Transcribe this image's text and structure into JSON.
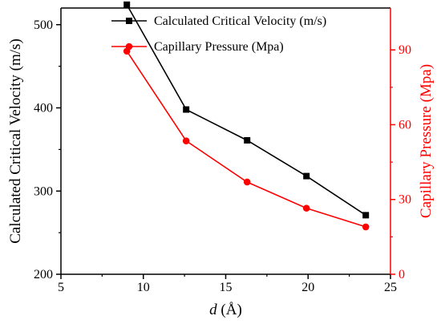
{
  "chart_data": {
    "type": "line",
    "x": [
      9.0,
      12.6,
      16.3,
      19.9,
      23.5
    ],
    "xlabel_italic": "d",
    "xlabel_unit": " (Å)",
    "xlim": [
      5,
      25
    ],
    "xticks": [
      5,
      10,
      15,
      20,
      25
    ],
    "ylabel_left": "Calculated Critical Velocity (m/s)",
    "ylim_left": [
      200,
      520
    ],
    "yticks_left": [
      200,
      300,
      400,
      500
    ],
    "ylabel_right": "Capillary Pressure (Mpa)",
    "ylim_right": [
      0,
      106.8
    ],
    "yticks_right": [
      0,
      30,
      60,
      90
    ],
    "series": [
      {
        "name": "Calculated Critical Velocity (m/s)",
        "axis": "left",
        "marker": "square",
        "color": "#000000",
        "values": [
          524,
          398,
          361,
          318,
          271
        ]
      },
      {
        "name": "Capillary Pressure (Mpa)",
        "axis": "right",
        "marker": "circle",
        "color": "#ff0000",
        "values": [
          89.5,
          53.5,
          37,
          26.5,
          19
        ]
      }
    ],
    "legend_position": "top-right",
    "grid": false
  }
}
